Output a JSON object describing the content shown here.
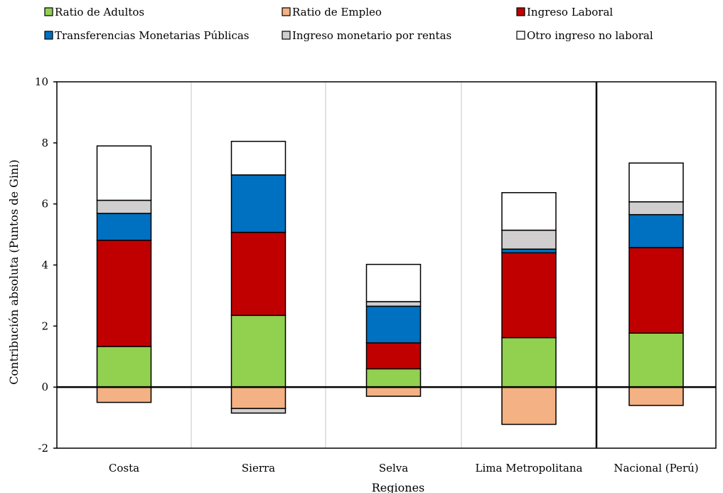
{
  "chart_data": {
    "type": "bar",
    "stacked": true,
    "title": "",
    "xlabel": "Regiones",
    "ylabel": "Contribución absoluta (Puntos de Gini)",
    "ylim": [
      -2,
      10
    ],
    "yticks": [
      -2,
      0,
      2,
      4,
      6,
      8,
      10
    ],
    "grid": true,
    "legend_position": "top",
    "categories": [
      "Costa",
      "Sierra",
      "Selva",
      "Lima Metropolitana",
      "Nacional (Perú)"
    ],
    "series": [
      {
        "name": "Ratio de Adultos",
        "color": "#92d050",
        "values": [
          1.33,
          2.35,
          0.6,
          1.62,
          1.77
        ]
      },
      {
        "name": "Ratio de Empleo",
        "color": "#f4b183",
        "values": [
          -0.5,
          -0.7,
          -0.3,
          -1.22,
          -0.6
        ]
      },
      {
        "name": "Ingreso Laboral",
        "color": "#c00000",
        "values": [
          3.48,
          2.72,
          0.85,
          2.78,
          2.8
        ]
      },
      {
        "name": "Transferencias Monetarias Públicas",
        "color": "#0070c0",
        "values": [
          0.88,
          1.88,
          1.2,
          0.12,
          1.08
        ]
      },
      {
        "name": "Ingreso monetario por rentas",
        "color": "#d0cece",
        "values": [
          0.43,
          -0.15,
          0.15,
          0.62,
          0.42
        ]
      },
      {
        "name": "Otro ingreso no laboral",
        "color": "#ffffff",
        "values": [
          1.78,
          1.1,
          1.22,
          1.23,
          1.27
        ]
      }
    ]
  }
}
